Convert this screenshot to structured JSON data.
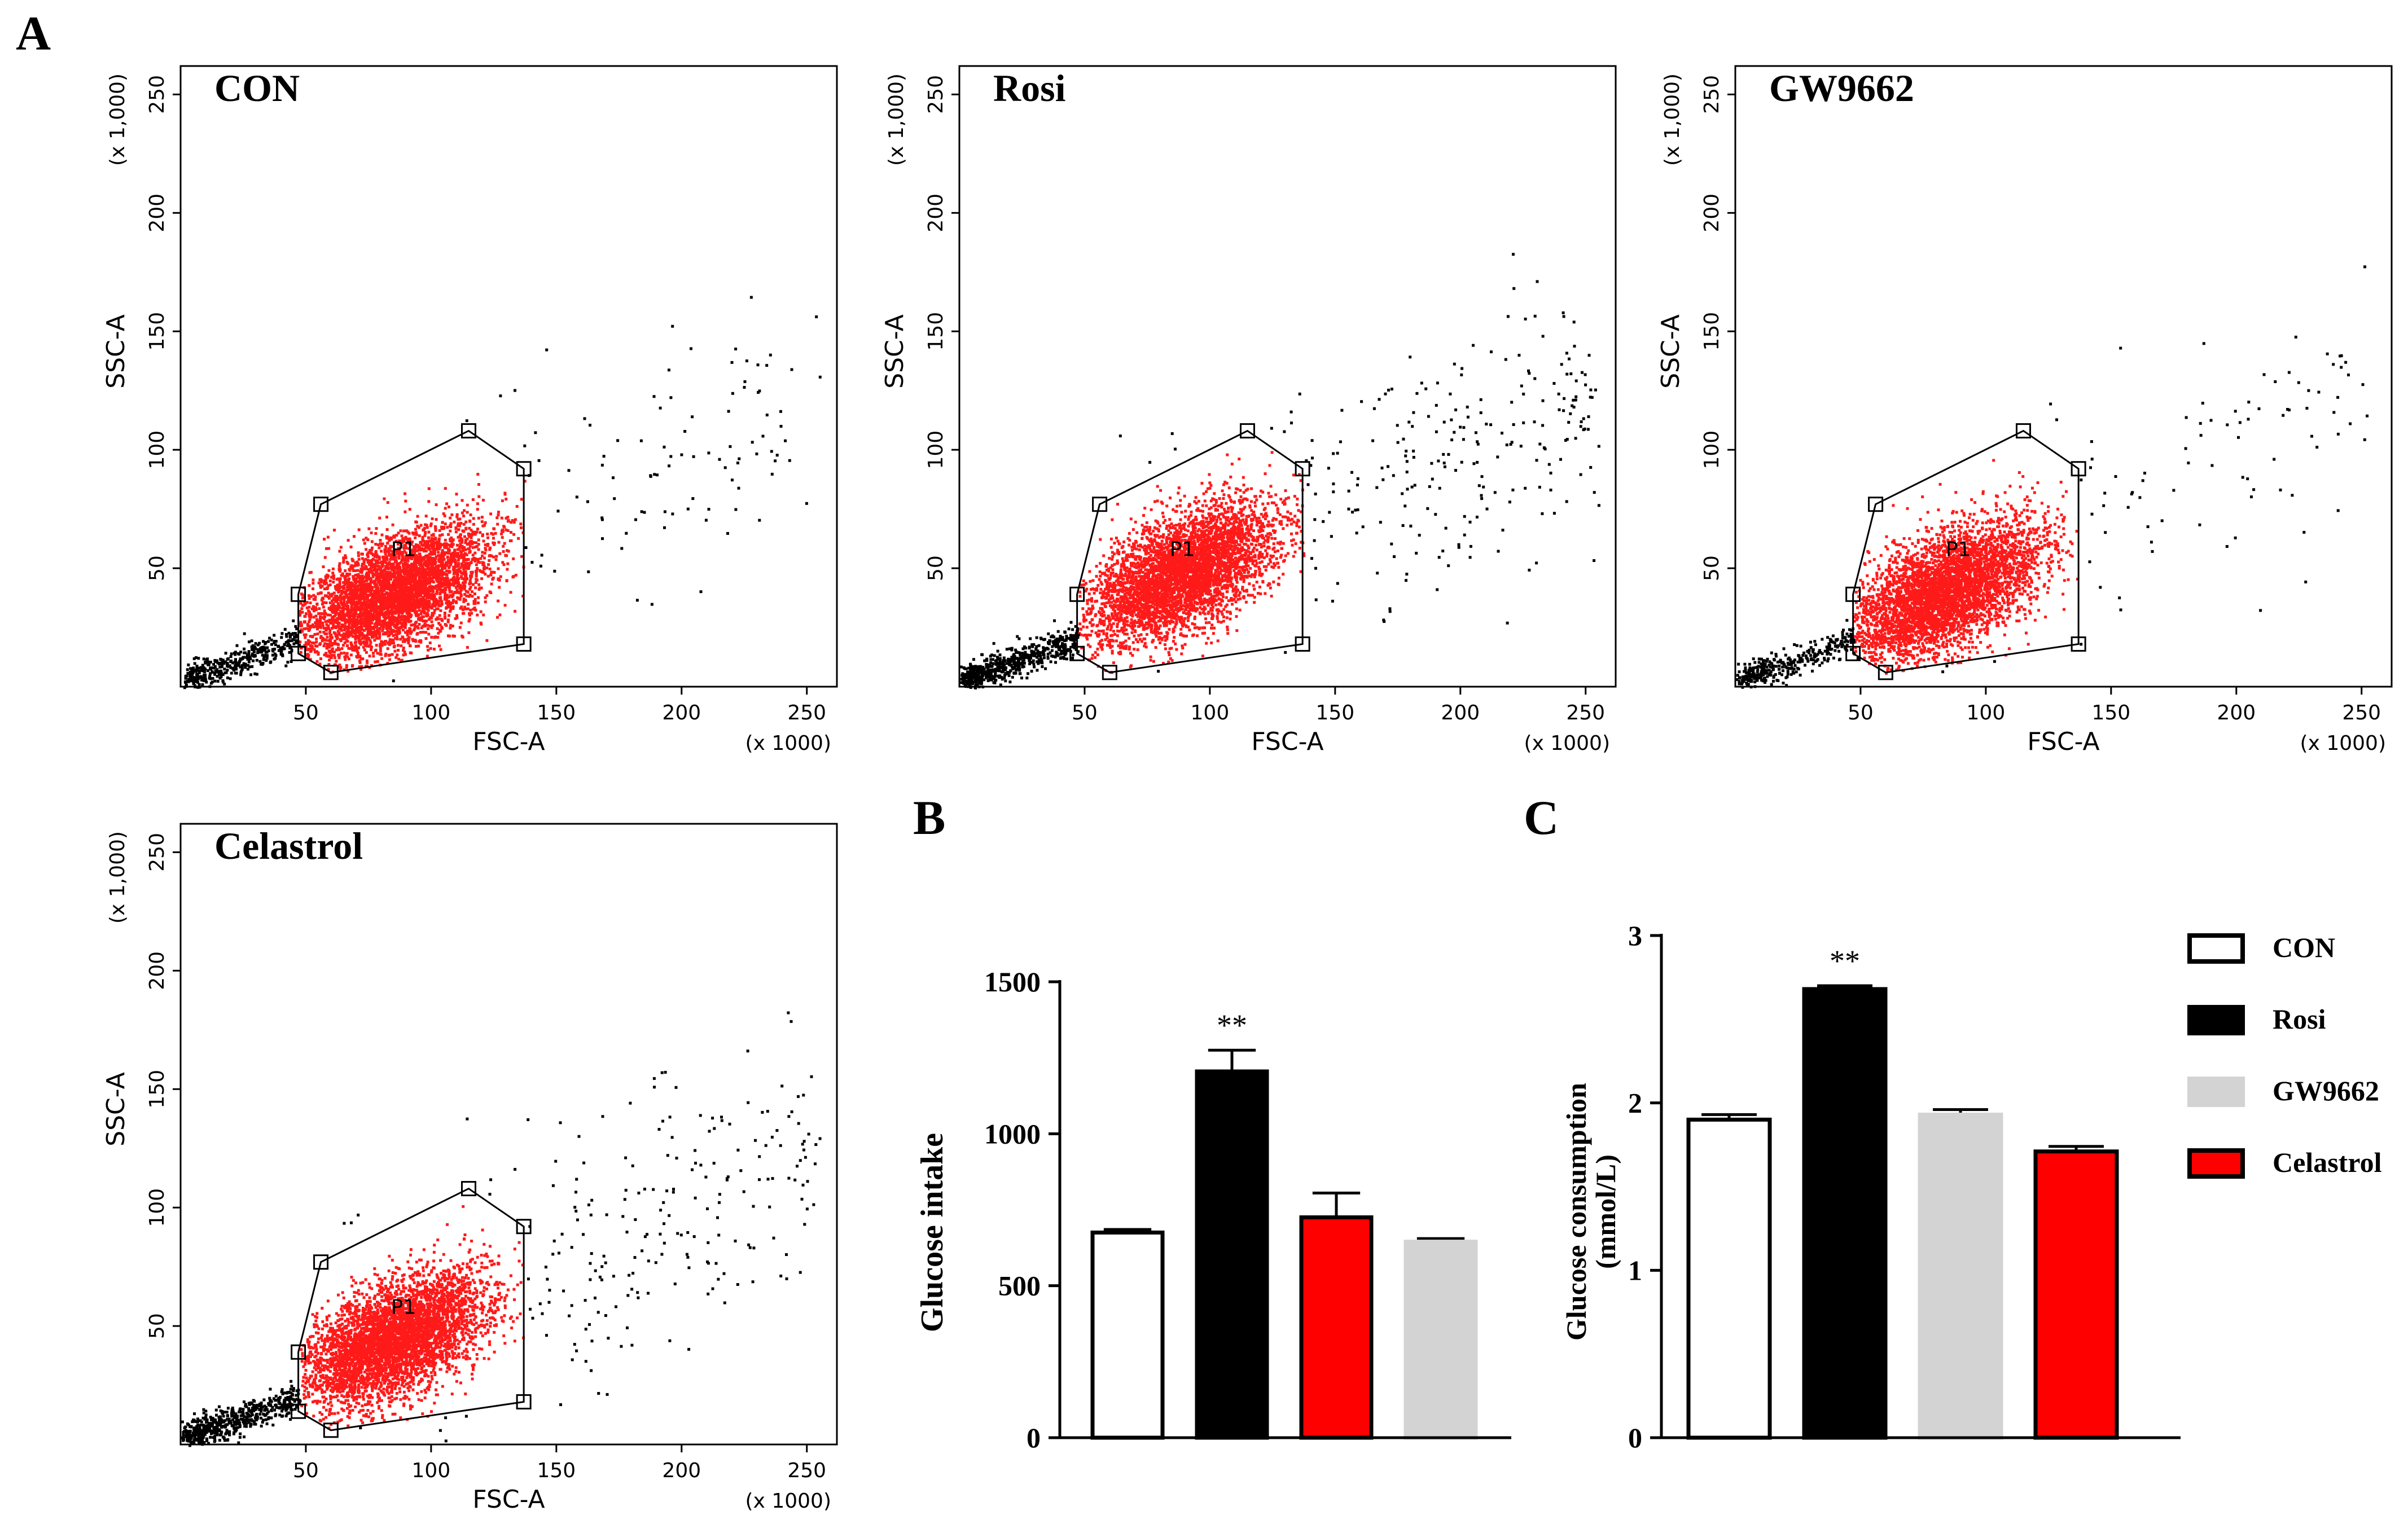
{
  "figure": {
    "panel_a_label": "A",
    "panel_b_label": "B",
    "panel_c_label": "C"
  },
  "chart_data": [
    {
      "panel": "A",
      "type": "scatter",
      "title": "CON",
      "xlabel": "FSC-A",
      "ylabel": "SSC-A",
      "x_scale_label": "(x 1000)",
      "y_scale_label": "(x 1,000)",
      "xlim": [
        0,
        262
      ],
      "ylim": [
        0,
        262
      ],
      "xticks": [
        50,
        100,
        150,
        200,
        250
      ],
      "yticks": [
        50,
        100,
        150,
        200,
        250
      ],
      "gate_label": "P1",
      "gate_vertices": [
        [
          56,
          77
        ],
        [
          115,
          108
        ],
        [
          137,
          92
        ],
        [
          137,
          18
        ],
        [
          60,
          6
        ],
        [
          47,
          14
        ],
        [
          47,
          39
        ]
      ],
      "cloud": {
        "center": [
          85,
          40
        ],
        "outside_density": 0.35
      },
      "seed": 11
    },
    {
      "panel": "A",
      "type": "scatter",
      "title": "Rosi",
      "xlabel": "FSC-A",
      "ylabel": "SSC-A",
      "x_scale_label": "(x 1000)",
      "y_scale_label": "(x 1,000)",
      "xlim": [
        0,
        262
      ],
      "ylim": [
        0,
        262
      ],
      "xticks": [
        50,
        100,
        150,
        200,
        250
      ],
      "yticks": [
        50,
        100,
        150,
        200,
        250
      ],
      "gate_label": "P1",
      "gate_vertices": [
        [
          56,
          77
        ],
        [
          115,
          108
        ],
        [
          137,
          92
        ],
        [
          137,
          18
        ],
        [
          60,
          6
        ],
        [
          47,
          14
        ],
        [
          47,
          39
        ]
      ],
      "cloud": {
        "center": [
          88,
          48
        ],
        "outside_density": 0.75
      },
      "seed": 23
    },
    {
      "panel": "A",
      "type": "scatter",
      "title": "GW9662",
      "xlabel": "FSC-A",
      "ylabel": "SSC-A",
      "x_scale_label": "(x 1000)",
      "y_scale_label": "(x 1,000)",
      "xlim": [
        0,
        262
      ],
      "ylim": [
        0,
        262
      ],
      "xticks": [
        50,
        100,
        150,
        200,
        250
      ],
      "yticks": [
        50,
        100,
        150,
        200,
        250
      ],
      "gate_label": "P1",
      "gate_vertices": [
        [
          56,
          77
        ],
        [
          115,
          108
        ],
        [
          137,
          92
        ],
        [
          137,
          18
        ],
        [
          60,
          6
        ],
        [
          47,
          14
        ],
        [
          47,
          39
        ]
      ],
      "cloud": {
        "center": [
          82,
          40
        ],
        "outside_density": 0.25
      },
      "seed": 37
    },
    {
      "panel": "A",
      "type": "scatter",
      "title": "Celastrol",
      "xlabel": "FSC-A",
      "ylabel": "SSC-A",
      "x_scale_label": "(x 1000)",
      "y_scale_label": "(x 1,000)",
      "xlim": [
        0,
        262
      ],
      "ylim": [
        0,
        262
      ],
      "xticks": [
        50,
        100,
        150,
        200,
        250
      ],
      "yticks": [
        50,
        100,
        150,
        200,
        250
      ],
      "gate_label": "P1",
      "gate_vertices": [
        [
          56,
          77
        ],
        [
          115,
          108
        ],
        [
          137,
          92
        ],
        [
          137,
          18
        ],
        [
          60,
          6
        ],
        [
          47,
          14
        ],
        [
          47,
          39
        ]
      ],
      "cloud": {
        "center": [
          85,
          45
        ],
        "outside_density": 0.65
      },
      "seed": 53
    },
    {
      "panel": "B",
      "type": "bar",
      "ylabel": "Glucose intake",
      "categories": [
        "CON",
        "Rosi",
        "Celastrol",
        "GW9662"
      ],
      "values": [
        675,
        1205,
        725,
        645
      ],
      "errors": [
        10,
        70,
        80,
        10
      ],
      "colors": [
        "#ffffff",
        "#000000",
        "#ff0000",
        "#d3d3d3"
      ],
      "annotations": [
        "",
        "**",
        "",
        ""
      ],
      "ylim": [
        0,
        1500
      ],
      "yticks": [
        0,
        500,
        1000,
        1500
      ]
    },
    {
      "panel": "C",
      "type": "bar",
      "ylabel_line1": "Glucose consumption",
      "ylabel_line2": "(mmol/L)",
      "categories": [
        "CON",
        "Rosi",
        "GW9662",
        "Celastrol"
      ],
      "values": [
        1.9,
        2.68,
        1.93,
        1.71
      ],
      "errors": [
        0.03,
        0.02,
        0.03,
        0.03
      ],
      "colors": [
        "#ffffff",
        "#000000",
        "#d3d3d3",
        "#ff0000"
      ],
      "annotations": [
        "",
        "**",
        "",
        ""
      ],
      "ylim": [
        0,
        3
      ],
      "yticks": [
        0,
        1,
        2,
        3
      ]
    }
  ],
  "legend": {
    "position": "right",
    "items": [
      {
        "label": "CON",
        "color": "#ffffff"
      },
      {
        "label": "Rosi",
        "color": "#000000"
      },
      {
        "label": "GW9662",
        "color": "#d3d3d3"
      },
      {
        "label": "Celastrol",
        "color": "#ff0000"
      }
    ]
  }
}
